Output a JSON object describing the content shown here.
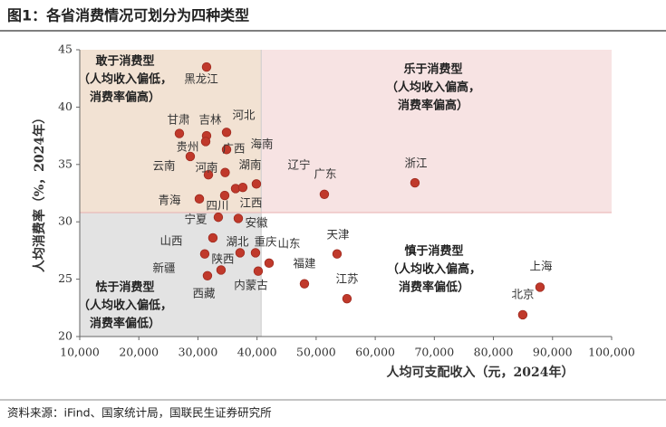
{
  "chart_data": {
    "type": "scatter",
    "title": "图1：各省消费情况可划分为四种类型",
    "xlabel": "人均可支配收入（元，2024年）",
    "ylabel": "人均消费率（%，2024年）",
    "source": "资料来源：iFind、国家统计局，国联民生证券研究所",
    "xlim": [
      10000,
      100000
    ],
    "ylim": [
      20,
      45
    ],
    "xticks": [
      {
        "value": 10000,
        "label": "10,000"
      },
      {
        "value": 20000,
        "label": "20,000"
      },
      {
        "value": 30000,
        "label": "30,000"
      },
      {
        "value": 40000,
        "label": "40,000"
      },
      {
        "value": 50000,
        "label": "50,000"
      },
      {
        "value": 60000,
        "label": "60,000"
      },
      {
        "value": 70000,
        "label": "70,000"
      },
      {
        "value": 80000,
        "label": "80,000"
      },
      {
        "value": 90000,
        "label": "90,000"
      },
      {
        "value": {
          "value": 100000,
          "label": "100,000"
        },
        "label": "100,000"
      }
    ],
    "yticks": [
      20,
      25,
      30,
      35,
      40,
      45
    ],
    "xsplit": 40700,
    "ysplit": 30.8,
    "color": "#c0392b",
    "quadrant_colors": [
      "#f2e2d3",
      "#f7e3e3",
      "#e3e3e3",
      "#ffffff"
    ],
    "quadrants": [
      {
        "lines": [
          "敢于消费型",
          "（人均收入偏低，",
          "消费率偏高）"
        ]
      },
      {
        "lines": [
          "乐于消费型",
          "（人均收入偏高，",
          "消费率偏高）"
        ]
      },
      {
        "lines": [
          "怯于消费型",
          "（人均收入偏低，",
          "消费率偏低）"
        ]
      },
      {
        "lines": [
          "慎于消费型",
          "（人均收入偏高，",
          "消费率偏低）"
        ]
      }
    ],
    "labels": [
      "黑龙江",
      "甘肃",
      "吉林",
      "河北",
      "贵州",
      "广西",
      "云南",
      "河南",
      "海南",
      "湖南",
      "辽宁",
      "青海",
      "四川",
      "江西",
      "广东",
      "浙江",
      "宁夏",
      "安徽",
      "山西",
      "湖北",
      "重庆",
      "山东",
      "新疆",
      "陕西",
      "西藏",
      "内蒙古",
      "福建",
      "天津",
      "江苏",
      "上海",
      "北京"
    ],
    "x": [
      31460,
      26860,
      31460,
      34840,
      31310,
      34840,
      28700,
      31770,
      34600,
      36370,
      39890,
      30240,
      34530,
      37590,
      51390,
      66720,
      33450,
      36830,
      32530,
      37130,
      39740,
      42040,
      31150,
      33910,
      31610,
      40200,
      48020,
      53540,
      55220,
      87880,
      84960
    ],
    "values": [
      43.5,
      37.7,
      37.5,
      37.8,
      37.0,
      36.3,
      35.7,
      34.1,
      34.3,
      32.9,
      33.3,
      32.0,
      32.3,
      33.0,
      32.4,
      33.4,
      30.4,
      30.3,
      28.6,
      27.3,
      27.3,
      26.4,
      27.2,
      25.8,
      25.3,
      25.7,
      24.6,
      27.2,
      23.3,
      24.3,
      21.9
    ]
  }
}
